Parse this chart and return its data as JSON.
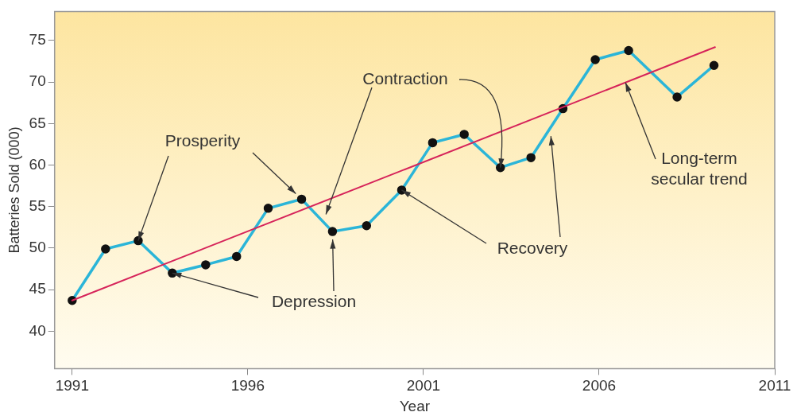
{
  "chart_data": {
    "type": "line",
    "xlabel": "Year",
    "ylabel": "Batteries Sold (000)",
    "xlim": [
      1990.5,
      2011
    ],
    "xticks": [
      1991,
      1996,
      2001,
      2006,
      2011
    ],
    "ylim": [
      35.5,
      78.5
    ],
    "yticks": [
      40,
      45,
      50,
      55,
      60,
      65,
      70,
      75
    ],
    "grid": false,
    "legend": false,
    "marker": "circle",
    "line_style": "solid",
    "series": [
      {
        "color": "#2bb5d8",
        "x": [
          1991,
          1991.95,
          1992.88,
          1993.85,
          1994.8,
          1995.68,
          1996.58,
          1997.53,
          1998.41,
          1999.38,
          2000.38,
          2001.26,
          2002.16,
          2003.19,
          2004.06,
          2004.97,
          2005.89,
          2006.84,
          2008.22,
          2009.27
        ],
        "values": [
          43.7,
          49.9,
          50.9,
          47.0,
          48.0,
          49.0,
          54.8,
          55.9,
          52.0,
          52.7,
          57.0,
          62.7,
          63.7,
          59.7,
          60.9,
          66.8,
          72.7,
          73.8,
          68.2,
          72.0
        ]
      },
      {
        "color": "#d6245a",
        "marker": "none",
        "x": [
          1991,
          2009.3
        ],
        "values": [
          43.7,
          74.2
        ]
      }
    ],
    "annotations": [
      {
        "text": "Prosperity",
        "x": 1992.88,
        "y": 50.9
      },
      {
        "text": "Contraction",
        "x": 2003.19,
        "y": 59.7
      },
      {
        "text": "Depression",
        "x": 1993.85,
        "y": 47.0
      },
      {
        "text": "Recovery",
        "x": 2000.38,
        "y": 57.0
      },
      {
        "text": "Long-term secular trend",
        "x": 2006.75,
        "y": 69.95
      }
    ]
  }
}
